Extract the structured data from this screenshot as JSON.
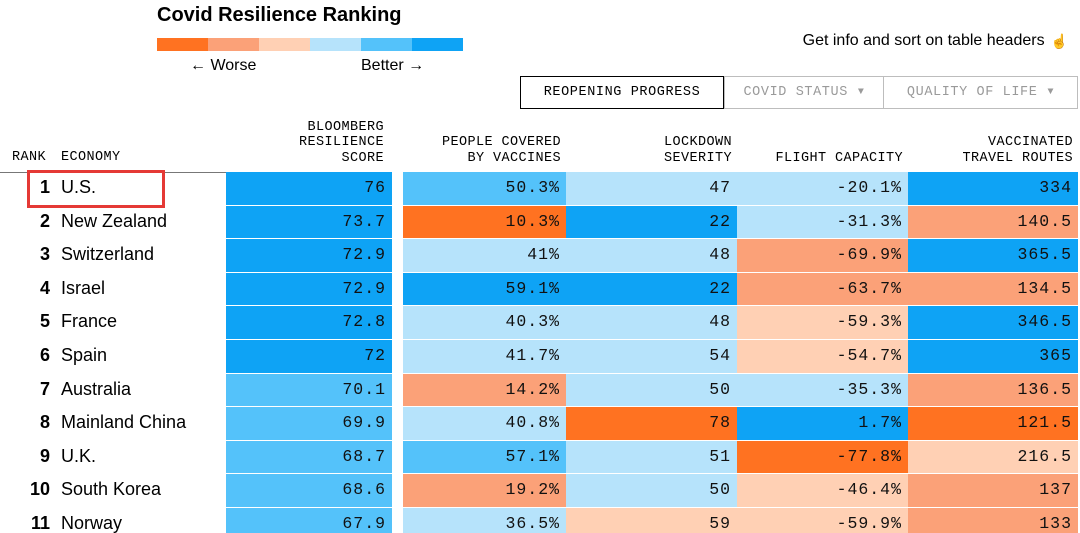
{
  "title": "Covid Resilience Ranking",
  "legend": {
    "colors": [
      "#ff7221",
      "#fba178",
      "#ffd0b4",
      "#b6e3fb",
      "#54c2fa",
      "#0ea3f5"
    ],
    "worse_label": "← Worse",
    "better_label": "Better →"
  },
  "info": {
    "text": "Get info and sort on table headers",
    "icon": "pointer-hand-icon"
  },
  "tabs": [
    {
      "label": "REOPENING PROGRESS",
      "active": true
    },
    {
      "label": "COVID STATUS",
      "active": false
    },
    {
      "label": "QUALITY OF LIFE",
      "active": false
    }
  ],
  "headers": {
    "rank": "RANK",
    "economy": "ECONOMY",
    "score": "BLOOMBERG\nRESILIENCE\nSCORE",
    "vaccines": "PEOPLE COVERED\nBY VACCINES",
    "lockdown": "LOCKDOWN\nSEVERITY",
    "flight": "FLIGHT CAPACITY",
    "routes": "VACCINATED\nTRAVEL ROUTES"
  },
  "colors": {
    "dark_blue": "#0ea3f5",
    "mid_blue": "#54c2fa",
    "light_blue": "#b6e3fb",
    "light_peach": "#ffd0b4",
    "salmon": "#fba178",
    "orange": "#ff7221",
    "highlight": "#e53935"
  },
  "rows": [
    {
      "rank": "1",
      "economy": "U.S.",
      "score": "76",
      "vaccines": "50.3%",
      "lockdown": "47",
      "flight": "-20.1%",
      "routes": "334",
      "c": [
        "dark_blue",
        "mid_blue",
        "light_blue",
        "light_blue",
        "dark_blue"
      ]
    },
    {
      "rank": "2",
      "economy": "New Zealand",
      "score": "73.7",
      "vaccines": "10.3%",
      "lockdown": "22",
      "flight": "-31.3%",
      "routes": "140.5",
      "c": [
        "dark_blue",
        "orange",
        "dark_blue",
        "light_blue",
        "salmon"
      ]
    },
    {
      "rank": "3",
      "economy": "Switzerland",
      "score": "72.9",
      "vaccines": "41%",
      "lockdown": "48",
      "flight": "-69.9%",
      "routes": "365.5",
      "c": [
        "dark_blue",
        "light_blue",
        "light_blue",
        "salmon",
        "dark_blue"
      ]
    },
    {
      "rank": "4",
      "economy": "Israel",
      "score": "72.9",
      "vaccines": "59.1%",
      "lockdown": "22",
      "flight": "-63.7%",
      "routes": "134.5",
      "c": [
        "dark_blue",
        "dark_blue",
        "dark_blue",
        "salmon",
        "salmon"
      ]
    },
    {
      "rank": "5",
      "economy": "France",
      "score": "72.8",
      "vaccines": "40.3%",
      "lockdown": "48",
      "flight": "-59.3%",
      "routes": "346.5",
      "c": [
        "dark_blue",
        "light_blue",
        "light_blue",
        "light_peach",
        "dark_blue"
      ]
    },
    {
      "rank": "6",
      "economy": "Spain",
      "score": "72",
      "vaccines": "41.7%",
      "lockdown": "54",
      "flight": "-54.7%",
      "routes": "365",
      "c": [
        "dark_blue",
        "light_blue",
        "light_blue",
        "light_peach",
        "dark_blue"
      ]
    },
    {
      "rank": "7",
      "economy": "Australia",
      "score": "70.1",
      "vaccines": "14.2%",
      "lockdown": "50",
      "flight": "-35.3%",
      "routes": "136.5",
      "c": [
        "mid_blue",
        "salmon",
        "light_blue",
        "light_blue",
        "salmon"
      ]
    },
    {
      "rank": "8",
      "economy": "Mainland China",
      "score": "69.9",
      "vaccines": "40.8%",
      "lockdown": "78",
      "flight": "1.7%",
      "routes": "121.5",
      "c": [
        "mid_blue",
        "light_blue",
        "orange",
        "dark_blue",
        "orange"
      ]
    },
    {
      "rank": "9",
      "economy": "U.K.",
      "score": "68.7",
      "vaccines": "57.1%",
      "lockdown": "51",
      "flight": "-77.8%",
      "routes": "216.5",
      "c": [
        "mid_blue",
        "mid_blue",
        "light_blue",
        "orange",
        "light_peach"
      ]
    },
    {
      "rank": "10",
      "economy": "South Korea",
      "score": "68.6",
      "vaccines": "19.2%",
      "lockdown": "50",
      "flight": "-46.4%",
      "routes": "137",
      "c": [
        "mid_blue",
        "salmon",
        "light_blue",
        "light_peach",
        "salmon"
      ]
    },
    {
      "rank": "11",
      "economy": "Norway",
      "score": "67.9",
      "vaccines": "36.5%",
      "lockdown": "59",
      "flight": "-59.9%",
      "routes": "133",
      "c": [
        "mid_blue",
        "light_blue",
        "light_peach",
        "light_peach",
        "salmon"
      ]
    }
  ]
}
